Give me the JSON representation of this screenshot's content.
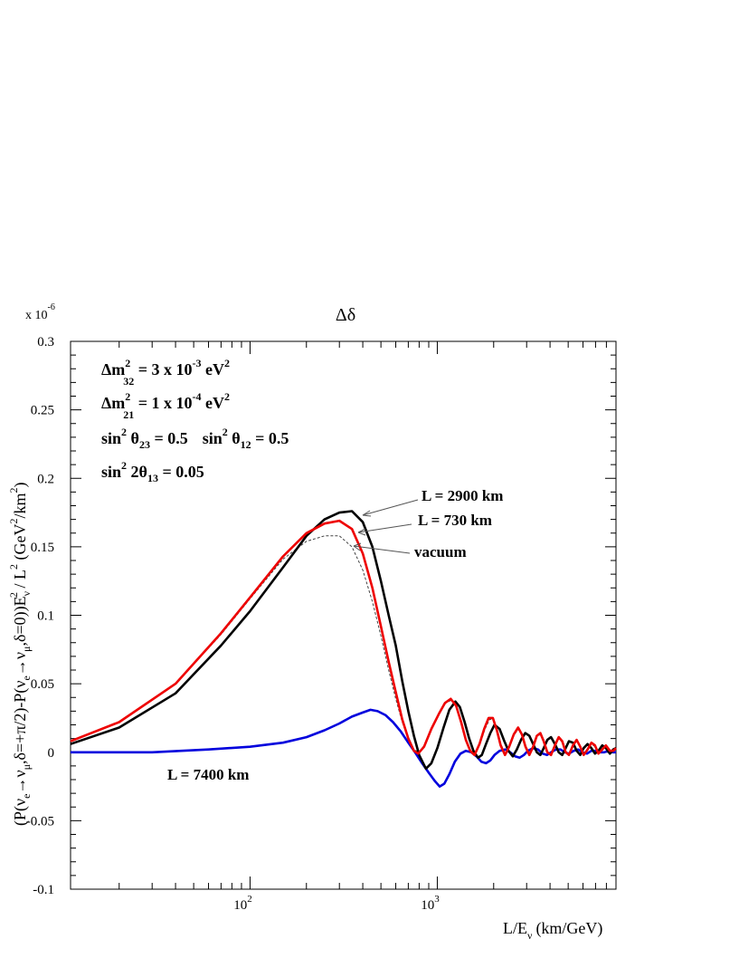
{
  "chart_data": {
    "type": "line",
    "title": "Δδ",
    "xlabel": "L/E",
    "xlabel_sub": "ν",
    "xlabel_unit": "(km/GeV)",
    "x_scale": "log",
    "xlim": [
      11,
      9000
    ],
    "ylim": [
      -0.1,
      0.3
    ],
    "y_multiplier": {
      "base": "x 10",
      "exponent": "-6"
    },
    "x_ticks": [
      {
        "value": 100,
        "base": "10",
        "exp": "2"
      },
      {
        "value": 1000,
        "base": "10",
        "exp": "3"
      }
    ],
    "y_ticks": [
      {
        "value": 0.3,
        "label": "0.3"
      },
      {
        "value": 0.25,
        "label": "0.25"
      },
      {
        "value": 0.2,
        "label": "0.2"
      },
      {
        "value": 0.15,
        "label": "0.15"
      },
      {
        "value": 0.1,
        "label": "0.1"
      },
      {
        "value": 0.05,
        "label": "0.05"
      },
      {
        "value": 0,
        "label": "0"
      },
      {
        "value": -0.05,
        "label": "-0.05"
      },
      {
        "value": -0.1,
        "label": "-0.1"
      }
    ],
    "grid": false,
    "series": [
      {
        "name": "L = 2900 km",
        "color": "#000000",
        "style": "solid",
        "points": [
          [
            11,
            0.006
          ],
          [
            20,
            0.018
          ],
          [
            40,
            0.043
          ],
          [
            70,
            0.078
          ],
          [
            100,
            0.103
          ],
          [
            150,
            0.135
          ],
          [
            200,
            0.158
          ],
          [
            250,
            0.17
          ],
          [
            300,
            0.175
          ],
          [
            350,
            0.176
          ],
          [
            400,
            0.168
          ],
          [
            450,
            0.15
          ],
          [
            500,
            0.125
          ],
          [
            550,
            0.1
          ],
          [
            600,
            0.078
          ],
          [
            650,
            0.052
          ],
          [
            700,
            0.03
          ],
          [
            750,
            0.012
          ],
          [
            800,
            -0.002
          ],
          [
            870,
            -0.012
          ],
          [
            930,
            -0.008
          ],
          [
            1000,
            0.003
          ],
          [
            1080,
            0.018
          ],
          [
            1160,
            0.031
          ],
          [
            1250,
            0.037
          ],
          [
            1320,
            0.033
          ],
          [
            1400,
            0.022
          ],
          [
            1480,
            0.01
          ],
          [
            1560,
            0.001
          ],
          [
            1650,
            -0.004
          ],
          [
            1730,
            -0.002
          ],
          [
            1820,
            0.006
          ],
          [
            1920,
            0.014
          ],
          [
            2020,
            0.02
          ],
          [
            2150,
            0.017
          ],
          [
            2280,
            0.008
          ],
          [
            2400,
            0.001
          ],
          [
            2530,
            -0.003
          ],
          [
            2660,
            0.002
          ],
          [
            2800,
            0.009
          ],
          [
            2950,
            0.014
          ],
          [
            3100,
            0.012
          ],
          [
            3250,
            0.006
          ],
          [
            3400,
            0.0
          ],
          [
            3550,
            -0.002
          ],
          [
            3700,
            0.003
          ],
          [
            3870,
            0.009
          ],
          [
            4050,
            0.011
          ],
          [
            4250,
            0.006
          ],
          [
            4450,
            0.0
          ],
          [
            4650,
            -0.002
          ],
          [
            4850,
            0.003
          ],
          [
            5050,
            0.008
          ],
          [
            5300,
            0.007
          ],
          [
            5550,
            0.001
          ],
          [
            5800,
            -0.002
          ],
          [
            6050,
            0.003
          ],
          [
            6350,
            0.006
          ],
          [
            6650,
            0.003
          ],
          [
            6950,
            -0.001
          ],
          [
            7250,
            0.001
          ],
          [
            7600,
            0.005
          ],
          [
            7950,
            0.003
          ],
          [
            8350,
            -0.001
          ],
          [
            8700,
            0.002
          ],
          [
            9000,
            0.003
          ]
        ]
      },
      {
        "name": "L = 730 km",
        "color": "#ee0000",
        "style": "solid",
        "points": [
          [
            11,
            0.008
          ],
          [
            20,
            0.022
          ],
          [
            40,
            0.05
          ],
          [
            70,
            0.087
          ],
          [
            100,
            0.113
          ],
          [
            150,
            0.143
          ],
          [
            200,
            0.16
          ],
          [
            250,
            0.167
          ],
          [
            300,
            0.169
          ],
          [
            350,
            0.163
          ],
          [
            400,
            0.145
          ],
          [
            450,
            0.12
          ],
          [
            500,
            0.092
          ],
          [
            550,
            0.066
          ],
          [
            600,
            0.044
          ],
          [
            650,
            0.024
          ],
          [
            700,
            0.01
          ],
          [
            750,
            0.001
          ],
          [
            790,
            -0.001
          ],
          [
            850,
            0.004
          ],
          [
            930,
            0.017
          ],
          [
            1020,
            0.028
          ],
          [
            1100,
            0.036
          ],
          [
            1180,
            0.039
          ],
          [
            1260,
            0.034
          ],
          [
            1340,
            0.022
          ],
          [
            1420,
            0.009
          ],
          [
            1500,
            0.001
          ],
          [
            1580,
            -0.002
          ],
          [
            1680,
            0.006
          ],
          [
            1780,
            0.017
          ],
          [
            1880,
            0.025
          ],
          [
            1980,
            0.025
          ],
          [
            2080,
            0.016
          ],
          [
            2180,
            0.005
          ],
          [
            2300,
            -0.002
          ],
          [
            2420,
            0.004
          ],
          [
            2560,
            0.013
          ],
          [
            2700,
            0.018
          ],
          [
            2830,
            0.013
          ],
          [
            2960,
            0.004
          ],
          [
            3100,
            -0.002
          ],
          [
            3250,
            0.004
          ],
          [
            3400,
            0.012
          ],
          [
            3550,
            0.014
          ],
          [
            3700,
            0.008
          ],
          [
            3870,
            0.0
          ],
          [
            4050,
            -0.002
          ],
          [
            4250,
            0.005
          ],
          [
            4450,
            0.011
          ],
          [
            4650,
            0.008
          ],
          [
            4850,
            0.0
          ],
          [
            5050,
            -0.002
          ],
          [
            5300,
            0.005
          ],
          [
            5550,
            0.009
          ],
          [
            5800,
            0.004
          ],
          [
            6050,
            -0.002
          ],
          [
            6350,
            0.002
          ],
          [
            6650,
            0.007
          ],
          [
            6950,
            0.005
          ],
          [
            7250,
            -0.001
          ],
          [
            7600,
            0.002
          ],
          [
            7950,
            0.005
          ],
          [
            8350,
            0.001
          ],
          [
            8700,
            0.001
          ],
          [
            9000,
            0.003
          ]
        ]
      },
      {
        "name": "vacuum",
        "color": "#444444",
        "style": "dashed",
        "points": [
          [
            11,
            0.008
          ],
          [
            20,
            0.022
          ],
          [
            40,
            0.05
          ],
          [
            70,
            0.086
          ],
          [
            100,
            0.112
          ],
          [
            150,
            0.141
          ],
          [
            200,
            0.154
          ],
          [
            250,
            0.158
          ],
          [
            300,
            0.158
          ],
          [
            350,
            0.15
          ],
          [
            400,
            0.133
          ],
          [
            450,
            0.11
          ],
          [
            500,
            0.085
          ],
          [
            550,
            0.06
          ],
          [
            600,
            0.039
          ],
          [
            650,
            0.022
          ],
          [
            700,
            0.01
          ],
          [
            750,
            0.002
          ],
          [
            800,
            0.0
          ],
          [
            860,
            0.006
          ],
          [
            940,
            0.018
          ],
          [
            1030,
            0.029
          ],
          [
            1110,
            0.036
          ],
          [
            1190,
            0.038
          ],
          [
            1270,
            0.033
          ],
          [
            1350,
            0.021
          ],
          [
            1430,
            0.009
          ],
          [
            1510,
            0.001
          ],
          [
            1600,
            -0.001
          ],
          [
            1700,
            0.007
          ],
          [
            1800,
            0.017
          ],
          [
            1900,
            0.024
          ],
          [
            2000,
            0.024
          ],
          [
            2100,
            0.015
          ],
          [
            2200,
            0.005
          ],
          [
            2320,
            -0.001
          ],
          [
            2440,
            0.005
          ],
          [
            2580,
            0.013
          ],
          [
            2720,
            0.017
          ],
          [
            2850,
            0.012
          ],
          [
            2980,
            0.004
          ],
          [
            3120,
            -0.001
          ],
          [
            3270,
            0.005
          ],
          [
            3420,
            0.012
          ],
          [
            3570,
            0.013
          ],
          [
            3720,
            0.007
          ],
          [
            3880,
            0.0
          ],
          [
            4060,
            -0.001
          ],
          [
            4260,
            0.005
          ],
          [
            4460,
            0.01
          ],
          [
            4660,
            0.007
          ],
          [
            4860,
            0.0
          ],
          [
            5060,
            -0.001
          ],
          [
            5310,
            0.005
          ],
          [
            5560,
            0.008
          ],
          [
            5810,
            0.003
          ],
          [
            6060,
            -0.001
          ],
          [
            6360,
            0.003
          ],
          [
            6660,
            0.006
          ],
          [
            6960,
            0.004
          ],
          [
            7260,
            0.0
          ],
          [
            7610,
            0.002
          ],
          [
            7960,
            0.005
          ],
          [
            8360,
            0.001
          ],
          [
            8710,
            0.001
          ],
          [
            9000,
            0.003
          ]
        ]
      },
      {
        "name": "L = 7400 km",
        "color": "#0000dd",
        "style": "solid",
        "points": [
          [
            11,
            0.0
          ],
          [
            30,
            0.0
          ],
          [
            60,
            0.002
          ],
          [
            100,
            0.004
          ],
          [
            150,
            0.007
          ],
          [
            200,
            0.011
          ],
          [
            250,
            0.016
          ],
          [
            300,
            0.021
          ],
          [
            350,
            0.026
          ],
          [
            400,
            0.029
          ],
          [
            440,
            0.031
          ],
          [
            480,
            0.03
          ],
          [
            530,
            0.027
          ],
          [
            580,
            0.022
          ],
          [
            640,
            0.015
          ],
          [
            700,
            0.007
          ],
          [
            760,
            0.0
          ],
          [
            830,
            -0.008
          ],
          [
            900,
            -0.015
          ],
          [
            970,
            -0.021
          ],
          [
            1030,
            -0.025
          ],
          [
            1090,
            -0.023
          ],
          [
            1160,
            -0.016
          ],
          [
            1240,
            -0.007
          ],
          [
            1330,
            -0.001
          ],
          [
            1420,
            0.001
          ],
          [
            1520,
            0.0
          ],
          [
            1620,
            -0.003
          ],
          [
            1720,
            -0.007
          ],
          [
            1820,
            -0.008
          ],
          [
            1920,
            -0.006
          ],
          [
            2020,
            -0.002
          ],
          [
            2150,
            0.001
          ],
          [
            2300,
            0.002
          ],
          [
            2450,
            0.0
          ],
          [
            2600,
            -0.003
          ],
          [
            2750,
            -0.004
          ],
          [
            2900,
            -0.002
          ],
          [
            3050,
            0.001
          ],
          [
            3250,
            0.003
          ],
          [
            3450,
            0.002
          ],
          [
            3650,
            -0.001
          ],
          [
            3850,
            -0.002
          ],
          [
            4050,
            0.0
          ],
          [
            4300,
            0.002
          ],
          [
            4550,
            0.002
          ],
          [
            4800,
            0.0
          ],
          [
            5050,
            -0.001
          ],
          [
            5350,
            0.001
          ],
          [
            5650,
            0.002
          ],
          [
            5950,
            0.0
          ],
          [
            6300,
            -0.001
          ],
          [
            6650,
            0.001
          ],
          [
            7000,
            0.001
          ],
          [
            7400,
            0.0
          ],
          [
            7800,
            0.0
          ],
          [
            8200,
            0.001
          ],
          [
            8600,
            0.0
          ],
          [
            9000,
            0.0
          ]
        ]
      }
    ],
    "parameters": [
      {
        "base": "Δm",
        "sup": "2",
        "sub": "32",
        "text": " = 3 x 10",
        "exp": "-3",
        "unit": " eV",
        "unit_sup": "2"
      },
      {
        "base": "Δm",
        "sup": "2",
        "sub": "21",
        "text": " = 1 x 10",
        "exp": "-4",
        "unit": " eV",
        "unit_sup": "2"
      }
    ],
    "mixing_line": {
      "a": "sin",
      "a_sup": "2",
      "a_theta": " θ",
      "a_sub": "23",
      "a_val": " = 0.5",
      "b": "sin",
      "b_sup": "2",
      "b_theta": " θ",
      "b_sub": "12",
      "b_val": " = 0.5"
    },
    "theta13_line": {
      "a": "sin",
      "a_sup": "2",
      "a_theta": " 2θ",
      "a_sub": "13",
      "a_val": " = 0.05"
    },
    "annotations": [
      {
        "text": "L = 2900 km",
        "series": 0
      },
      {
        "text": "L = 730 km",
        "series": 1
      },
      {
        "text": "vacuum",
        "series": 2
      },
      {
        "text": "L = 7400 km",
        "series": 3
      }
    ],
    "ylabel": {
      "p1": "(P(ν",
      "s1": "e",
      "p2": "→ν",
      "s2": "μ",
      "p3": ",δ=+π/2)-P(ν",
      "s3": "e",
      "p4": "→ν",
      "s4": "μ",
      "p5": ",δ=0))E",
      "sub5": "ν",
      "sup5": "2",
      "p6": " / L",
      "sup6": "2",
      "p7": "   (GeV",
      "sup7": "2",
      "p8": "/km",
      "sup8": "2",
      "p9": ")"
    }
  }
}
